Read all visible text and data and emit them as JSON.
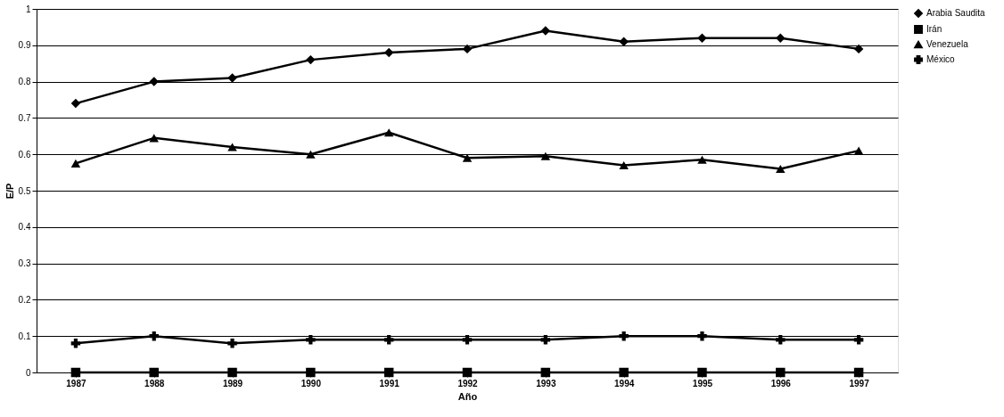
{
  "chart_data": {
    "type": "line",
    "xlabel": "Año",
    "ylabel": "E/P",
    "categories": [
      "1987",
      "1988",
      "1989",
      "1990",
      "1991",
      "1992",
      "1993",
      "1994",
      "1995",
      "1996",
      "1997"
    ],
    "series": [
      {
        "name": "Arabia Saudita",
        "color": "#000000",
        "marker": "diamond",
        "values": [
          0.74,
          0.8,
          0.81,
          0.86,
          0.88,
          0.89,
          0.94,
          0.91,
          0.92,
          0.92,
          0.89
        ]
      },
      {
        "name": "Irán",
        "color": "#000000",
        "marker": "square",
        "values": [
          0.0,
          0.0,
          0.0,
          0.0,
          0.0,
          0.0,
          0.0,
          0.0,
          0.0,
          0.0,
          0.0
        ]
      },
      {
        "name": "Venezuela",
        "color": "#000000",
        "marker": "triangle",
        "values": [
          0.575,
          0.645,
          0.62,
          0.6,
          0.66,
          0.59,
          0.595,
          0.57,
          0.585,
          0.56,
          0.61
        ]
      },
      {
        "name": "México",
        "color": "#000000",
        "marker": "cross",
        "values": [
          0.08,
          0.1,
          0.08,
          0.09,
          0.09,
          0.09,
          0.09,
          0.1,
          0.1,
          0.09,
          0.09
        ]
      }
    ],
    "ylim": [
      0,
      1
    ],
    "yticks": [
      0,
      0.1,
      0.2,
      0.3,
      0.4,
      0.5,
      0.6,
      0.7,
      0.8,
      0.9,
      1
    ],
    "grid": "y",
    "legend": "right",
    "line_style": "solid"
  }
}
